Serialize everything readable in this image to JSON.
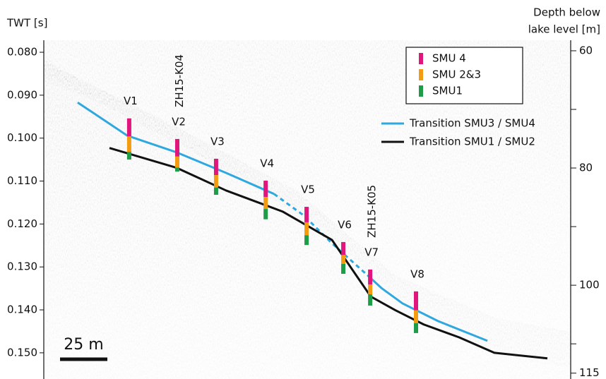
{
  "chart_data": {
    "type": "line",
    "y_label": "TWT [s]",
    "y2_label": [
      "Depth below",
      "lake level [m]"
    ],
    "xlim": [
      0,
      278.3
    ],
    "ylim": [
      0.0772,
      0.1561
    ],
    "yticks": [
      {
        "value": 0.08,
        "label": "0.080"
      },
      {
        "value": 0.09,
        "label": "0.090"
      },
      {
        "value": 0.1,
        "label": "0.100"
      },
      {
        "value": 0.11,
        "label": "0.110"
      },
      {
        "value": 0.12,
        "label": "0.120"
      },
      {
        "value": 0.13,
        "label": "0.130"
      },
      {
        "value": 0.14,
        "label": "0.140"
      },
      {
        "value": 0.15,
        "label": "0.150"
      }
    ],
    "y2lim": [
      58.2,
      116
    ],
    "y2ticks": [
      60,
      80,
      100,
      115
    ],
    "y2minor_ticks": [
      70,
      90,
      110
    ],
    "series": [
      {
        "name": "Transition SMU3 / SMU4",
        "color": "#2ea8de",
        "segments": [
          {
            "style": "solid",
            "x": [
              17.9,
              44.0,
              70.1,
              96.3,
              121.6
            ],
            "values": [
              0.0917,
              0.0994,
              0.1033,
              0.1081,
              0.113
            ]
          },
          {
            "style": "dashed",
            "x": [
              121.6,
              137.3,
              152.2,
              170.9
            ],
            "values": [
              0.113,
              0.118,
              0.1245,
              0.1319
            ]
          },
          {
            "style": "solid",
            "x": [
              170.9,
              178.3,
              189.5,
              208.2,
              234.3
            ],
            "values": [
              0.1319,
              0.1349,
              0.1385,
              0.1426,
              0.1472
            ]
          }
        ]
      },
      {
        "name": "Transition SMU1 / SMU2",
        "color": "#111111",
        "segments": [
          {
            "style": "solid",
            "x": [
              34.7,
              70.1,
              96.3,
              126.1,
              152.2,
              172.7,
              185.8,
              200.7,
              219.4,
              238.0,
              266.0
            ],
            "values": [
              0.1023,
              0.1069,
              0.1122,
              0.1171,
              0.1237,
              0.1369,
              0.1401,
              0.1434,
              0.1464,
              0.15,
              0.1513
            ]
          }
        ]
      }
    ],
    "units": [
      {
        "name": "SMU 4",
        "color": "#e0167c"
      },
      {
        "name": "SMU 2&3",
        "color": "#f39c12"
      },
      {
        "name": "SMU1",
        "color": "#1e9c48"
      }
    ],
    "columns": [
      {
        "label": "V1",
        "x": 45.1,
        "bounds": [
          0.0954,
          0.0996,
          0.1032,
          0.105
        ]
      },
      {
        "label": "V2",
        "x": 70.5,
        "bounds": [
          0.1002,
          0.1043,
          0.1069,
          0.1078
        ]
      },
      {
        "label": "V3",
        "x": 91.0,
        "bounds": [
          0.1048,
          0.1086,
          0.1115,
          0.1132
        ]
      },
      {
        "label": "V4",
        "x": 117.2,
        "bounds": [
          0.1099,
          0.1137,
          0.1165,
          0.1189
        ]
      },
      {
        "label": "V5",
        "x": 138.8,
        "bounds": [
          0.116,
          0.1196,
          0.1226,
          0.1249
        ]
      },
      {
        "label": "V6",
        "x": 158.2,
        "bounds": [
          0.1242,
          0.1272,
          0.1293,
          0.1316
        ]
      },
      {
        "label": "V7",
        "x": 172.4,
        "bounds": [
          0.1306,
          0.1341,
          0.1364,
          0.139
        ]
      },
      {
        "label": "V8",
        "x": 196.6,
        "bounds": [
          0.1357,
          0.1401,
          0.1431,
          0.1454
        ]
      }
    ],
    "boreholes": [
      {
        "label": "ZH15-K04",
        "x": 71.9
      },
      {
        "label": "ZH15-K05",
        "x": 173.5
      }
    ],
    "scale_bar": {
      "label": "25 m",
      "length": 25
    }
  }
}
